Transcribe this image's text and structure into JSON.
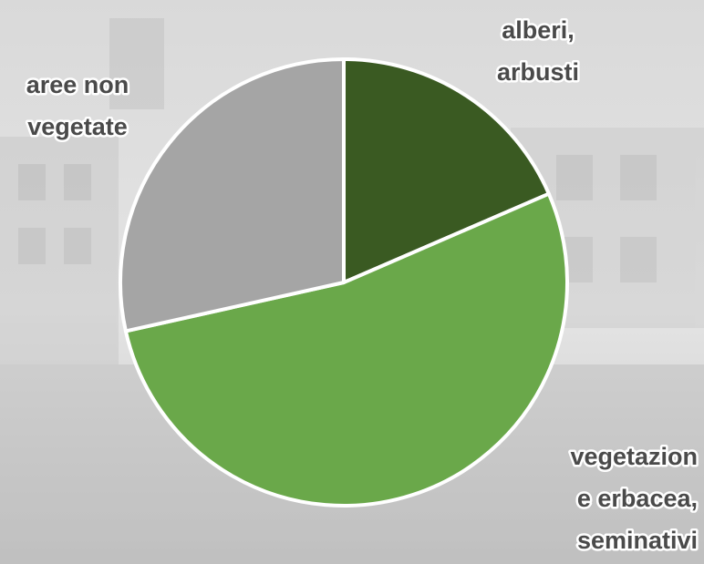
{
  "chart_data": {
    "type": "pie",
    "categories": [
      [
        "alberi,",
        "arbusti"
      ],
      [
        "vegetazion",
        "e erbacea,",
        "seminativi"
      ],
      [
        "aree non",
        "vegetate"
      ]
    ],
    "values": [
      18.5,
      53,
      28.5
    ],
    "colors": [
      "#3a5a22",
      "#6aa84a",
      "#a5a5a5"
    ]
  }
}
